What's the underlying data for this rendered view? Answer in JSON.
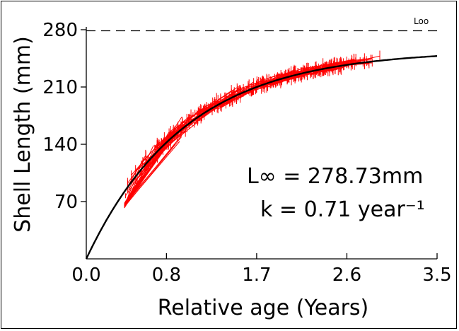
{
  "chart_data": {
    "type": "line",
    "title": "",
    "xlabel": "Relative age (Years)",
    "ylabel": "Shell Length (mm)",
    "xlim": [
      0,
      3.5
    ],
    "ylim": [
      0,
      280
    ],
    "x_ticks": [
      "0.0",
      "0.8",
      "1.7",
      "2.6",
      "3.5"
    ],
    "x_tick_values": [
      0,
      0.8,
      1.7,
      2.6,
      3.5
    ],
    "y_ticks": [
      "70",
      "140",
      "210",
      "280"
    ],
    "y_tick_values": [
      70,
      140,
      210,
      280
    ],
    "grid": false,
    "asymptote": {
      "label": "Loo",
      "value": 278.73,
      "style": "dashed"
    },
    "annotations": [
      "L∞ = 278.73mm",
      "k = 0.71 year⁻¹"
    ],
    "model": {
      "Linf": 278.73,
      "k": 0.71
    },
    "series": [
      {
        "color": "#000000",
        "style": "fitted von Bertalanffy growth curve",
        "x_range": [
          0,
          3.5
        ]
      },
      {
        "color": "#ff0000",
        "style": "individual growth increments with error bars",
        "x_range": [
          0.38,
          2.95
        ],
        "y_range": [
          60,
          253
        ]
      }
    ]
  }
}
